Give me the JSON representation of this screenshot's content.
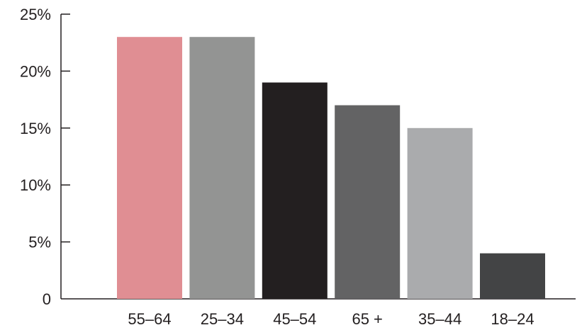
{
  "chart_data": {
    "type": "bar",
    "title": "",
    "xlabel": "",
    "ylabel": "",
    "categories": [
      "55–64",
      "25–34",
      "45–54",
      "65 +",
      "35–44",
      "18–24"
    ],
    "values": [
      23,
      23,
      19,
      17,
      15,
      4
    ],
    "colors": [
      "#e08e93",
      "#939493",
      "#231f20",
      "#636364",
      "#aaabad",
      "#434445"
    ],
    "ylim": [
      0,
      25
    ],
    "yticks": [
      0,
      5,
      10,
      15,
      20,
      25
    ],
    "ytick_labels": [
      "0",
      "5%",
      "10%",
      "15%",
      "20%",
      "25%"
    ],
    "grid": false,
    "legend": "none"
  }
}
